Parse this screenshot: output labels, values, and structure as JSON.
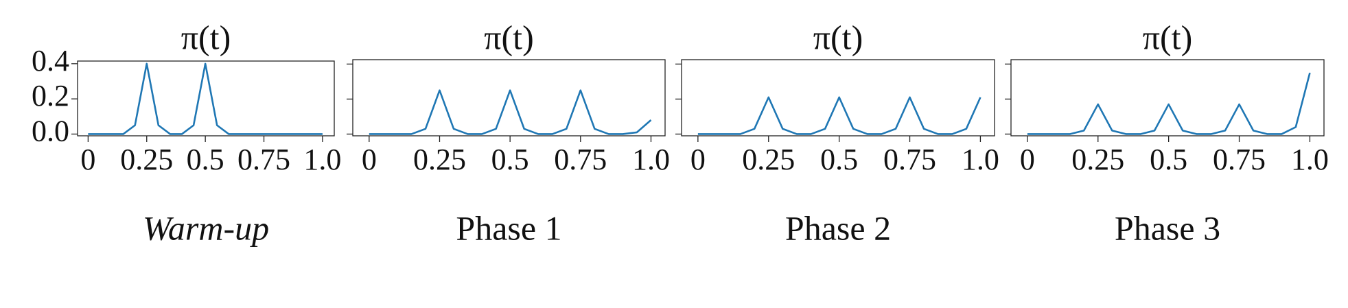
{
  "chart_data": [
    {
      "type": "line",
      "title": "π(t)",
      "xlabel": "Warm-up",
      "x": [
        0,
        0.05,
        0.1,
        0.15,
        0.2,
        0.25,
        0.3,
        0.35,
        0.4,
        0.45,
        0.5,
        0.55,
        0.6,
        0.65,
        0.7,
        0.75,
        0.8,
        0.85,
        0.9,
        0.95,
        1.0
      ],
      "series": [
        {
          "color": "#1f77b4",
          "values": [
            0,
            0,
            0,
            0,
            0.05,
            0.4,
            0.05,
            0,
            0,
            0.05,
            0.4,
            0.05,
            0,
            0,
            0,
            0,
            0,
            0,
            0,
            0,
            0
          ]
        }
      ],
      "xlim": [
        -0.045,
        1.05
      ],
      "ylim": [
        -0.01,
        0.415
      ],
      "xticks": [
        0,
        0.25,
        0.5,
        0.75,
        {
          "value": 1,
          "label": "1.0"
        }
      ],
      "yticks": [
        {
          "value": 0,
          "label": "0.0"
        },
        0.2,
        0.4
      ]
    },
    {
      "type": "line",
      "title": "π(t)",
      "xlabel": "Phase 1",
      "x": [
        0,
        0.05,
        0.1,
        0.15,
        0.2,
        0.25,
        0.3,
        0.35,
        0.4,
        0.45,
        0.5,
        0.55,
        0.6,
        0.65,
        0.7,
        0.75,
        0.8,
        0.85,
        0.9,
        0.95,
        1.0
      ],
      "series": [
        {
          "color": "#1f77b4",
          "values": [
            0,
            0,
            0,
            0,
            0.03,
            0.25,
            0.03,
            0,
            0,
            0.03,
            0.25,
            0.03,
            0,
            0,
            0.03,
            0.25,
            0.03,
            0,
            0,
            0.01,
            0.08
          ]
        }
      ],
      "xlim": [
        -0.058,
        1.05
      ],
      "ylim": [
        -0.01,
        0.425
      ],
      "xticks": [
        0,
        0.25,
        0.5,
        0.75,
        {
          "value": 1,
          "label": "1.0"
        }
      ]
    },
    {
      "type": "line",
      "title": "π(t)",
      "xlabel": "Phase 2",
      "x": [
        0,
        0.05,
        0.1,
        0.15,
        0.2,
        0.25,
        0.3,
        0.35,
        0.4,
        0.45,
        0.5,
        0.55,
        0.6,
        0.65,
        0.7,
        0.75,
        0.8,
        0.85,
        0.9,
        0.95,
        1.0
      ],
      "series": [
        {
          "color": "#1f77b4",
          "values": [
            0,
            0,
            0,
            0,
            0.03,
            0.21,
            0.03,
            0,
            0,
            0.03,
            0.21,
            0.03,
            0,
            0,
            0.03,
            0.21,
            0.03,
            0,
            0,
            0.03,
            0.21
          ]
        }
      ],
      "xlim": [
        -0.058,
        1.05
      ],
      "ylim": [
        -0.01,
        0.425
      ],
      "xticks": [
        0,
        0.25,
        0.5,
        0.75,
        {
          "value": 1,
          "label": "1.0"
        }
      ]
    },
    {
      "type": "line",
      "title": "π(t)",
      "xlabel": "Phase 3",
      "x": [
        0,
        0.05,
        0.1,
        0.15,
        0.2,
        0.25,
        0.3,
        0.35,
        0.4,
        0.45,
        0.5,
        0.55,
        0.6,
        0.65,
        0.7,
        0.75,
        0.8,
        0.85,
        0.9,
        0.95,
        1.0
      ],
      "series": [
        {
          "color": "#1f77b4",
          "values": [
            0,
            0,
            0,
            0,
            0.02,
            0.17,
            0.02,
            0,
            0,
            0.02,
            0.17,
            0.02,
            0,
            0,
            0.02,
            0.17,
            0.02,
            0,
            0,
            0.04,
            0.35
          ]
        }
      ],
      "xlim": [
        -0.058,
        1.05
      ],
      "ylim": [
        -0.01,
        0.425
      ],
      "xticks": [
        0,
        0.25,
        0.5,
        0.75,
        {
          "value": 1,
          "label": "1.0"
        }
      ]
    }
  ]
}
